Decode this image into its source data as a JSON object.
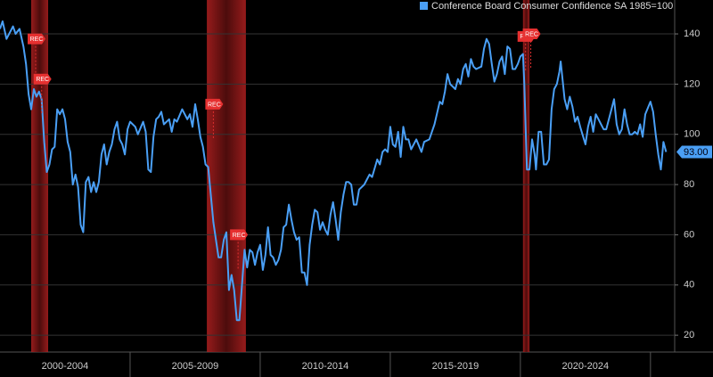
{
  "chart_data": {
    "type": "line",
    "x": [
      2000.0,
      2000.1,
      2000.25,
      2000.4,
      2000.5,
      2000.6,
      2000.75,
      2000.9,
      2001.0,
      2001.1,
      2001.2,
      2001.3,
      2001.4,
      2001.5,
      2001.6,
      2001.7,
      2001.8,
      2001.9,
      2002.0,
      2002.1,
      2002.2,
      2002.3,
      2002.4,
      2002.5,
      2002.6,
      2002.7,
      2002.8,
      2002.9,
      2003.0,
      2003.1,
      2003.2,
      2003.3,
      2003.4,
      2003.5,
      2003.6,
      2003.7,
      2003.8,
      2003.9,
      2004.0,
      2004.1,
      2004.2,
      2004.3,
      2004.4,
      2004.5,
      2004.6,
      2004.7,
      2004.8,
      2004.9,
      2005.0,
      2005.2,
      2005.3,
      2005.5,
      2005.6,
      2005.7,
      2005.8,
      2005.9,
      2006.0,
      2006.1,
      2006.2,
      2006.3,
      2006.5,
      2006.6,
      2006.7,
      2006.8,
      2007.0,
      2007.1,
      2007.2,
      2007.3,
      2007.4,
      2007.5,
      2007.6,
      2007.7,
      2007.8,
      2007.9,
      2008.0,
      2008.1,
      2008.2,
      2008.3,
      2008.4,
      2008.5,
      2008.6,
      2008.7,
      2008.8,
      2008.9,
      2009.0,
      2009.1,
      2009.2,
      2009.3,
      2009.4,
      2009.5,
      2009.6,
      2009.7,
      2009.8,
      2009.9,
      2010.0,
      2010.1,
      2010.2,
      2010.3,
      2010.4,
      2010.5,
      2010.6,
      2010.7,
      2010.8,
      2010.9,
      2011.0,
      2011.1,
      2011.2,
      2011.3,
      2011.4,
      2011.5,
      2011.6,
      2011.7,
      2011.8,
      2011.9,
      2012.0,
      2012.1,
      2012.2,
      2012.3,
      2012.4,
      2012.5,
      2012.6,
      2012.7,
      2012.8,
      2012.9,
      2013.0,
      2013.1,
      2013.2,
      2013.3,
      2013.4,
      2013.5,
      2013.6,
      2013.7,
      2013.8,
      2014.0,
      2014.2,
      2014.3,
      2014.5,
      2014.6,
      2014.7,
      2014.8,
      2014.9,
      2015.0,
      2015.1,
      2015.2,
      2015.3,
      2015.4,
      2015.5,
      2015.6,
      2015.7,
      2015.8,
      2015.9,
      2016.0,
      2016.2,
      2016.3,
      2016.5,
      2016.6,
      2016.7,
      2016.9,
      2017.0,
      2017.1,
      2017.2,
      2017.3,
      2017.5,
      2017.6,
      2017.7,
      2017.8,
      2017.9,
      2018.0,
      2018.1,
      2018.2,
      2018.3,
      2018.5,
      2018.6,
      2018.7,
      2018.8,
      2018.9,
      2019.0,
      2019.1,
      2019.2,
      2019.3,
      2019.4,
      2019.5,
      2019.6,
      2019.7,
      2019.8,
      2019.9,
      2020.0,
      2020.1,
      2020.15,
      2020.25,
      2020.35,
      2020.45,
      2020.55,
      2020.6,
      2020.7,
      2020.8,
      2020.9,
      2021.0,
      2021.1,
      2021.2,
      2021.3,
      2021.4,
      2021.5,
      2021.55,
      2021.7,
      2021.8,
      2021.9,
      2022.0,
      2022.1,
      2022.2,
      2022.3,
      2022.5,
      2022.6,
      2022.7,
      2022.8,
      2022.9,
      2023.0,
      2023.1,
      2023.2,
      2023.3,
      2023.5,
      2023.6,
      2023.7,
      2023.8,
      2023.9,
      2024.0,
      2024.1,
      2024.2,
      2024.3,
      2024.4,
      2024.5,
      2024.6,
      2024.7,
      2024.8,
      2025.0,
      2025.1,
      2025.2,
      2025.3,
      2025.4,
      2025.5,
      2025.6
    ],
    "series": [
      {
        "name": "Conference Board Consumer Confidence SA 1985=100",
        "color": "#4a9ff5",
        "values": [
          142,
          145,
          138,
          141,
          143,
          140,
          142,
          135,
          128,
          116,
          110,
          118,
          115,
          117,
          114,
          97,
          85,
          88,
          94,
          95,
          110,
          108,
          110,
          106,
          97,
          93,
          80,
          84,
          79,
          64,
          61,
          81,
          83,
          77,
          81,
          77,
          81,
          92,
          96,
          88,
          93,
          96,
          102,
          105,
          98,
          96,
          92,
          102,
          105,
          103,
          100,
          105,
          101,
          86,
          85,
          99,
          106,
          107,
          109,
          104,
          106,
          101,
          106,
          105,
          110,
          108,
          106,
          108,
          103,
          112,
          106,
          99,
          95,
          88,
          87,
          76,
          65,
          58,
          51,
          51,
          58,
          61,
          38,
          44,
          38,
          26,
          26,
          40,
          54,
          47,
          54,
          53,
          48,
          53,
          56,
          46,
          52,
          63,
          52,
          51,
          48,
          50,
          54,
          63,
          64,
          72,
          66,
          61,
          58,
          59,
          45,
          45,
          40,
          56,
          64,
          70,
          69,
          62,
          65,
          62,
          60,
          68,
          73,
          66,
          58,
          69,
          76,
          81,
          81,
          80,
          72,
          72,
          78,
          80,
          84,
          83,
          90,
          88,
          93,
          94,
          93,
          103,
          96,
          95,
          101,
          91,
          103,
          98,
          98,
          94,
          96,
          98,
          93,
          97,
          98,
          101,
          104,
          113,
          112,
          117,
          124,
          120,
          118,
          122,
          120,
          126,
          128,
          123,
          130,
          127,
          126,
          127,
          134,
          138,
          136,
          128,
          121,
          124,
          129,
          131,
          124,
          135,
          134,
          126,
          126,
          128,
          131,
          132,
          120,
          86,
          86,
          98,
          92,
          86,
          101,
          101,
          88,
          88,
          90,
          110,
          118,
          120,
          125,
          129,
          114,
          110,
          115,
          111,
          105,
          107,
          103,
          96,
          103,
          107,
          101,
          108,
          106,
          104,
          102,
          102,
          110,
          114,
          104,
          100,
          102,
          110,
          104,
          100,
          100,
          101,
          100,
          104,
          99,
          108,
          113,
          109,
          100,
          92,
          86,
          97,
          93
        ]
      }
    ],
    "last_value": {
      "value": 93,
      "label": "93.00"
    },
    "recessions": [
      {
        "start": 2001.2,
        "end": 2001.85
      },
      {
        "start": 2007.95,
        "end": 2009.45
      },
      {
        "start": 2020.1,
        "end": 2020.35
      }
    ],
    "annotations": [
      {
        "x": 2001.37,
        "y": 138,
        "text": "REC"
      },
      {
        "x": 2001.6,
        "y": 122,
        "text": "REC"
      },
      {
        "x": 2008.2,
        "y": 112,
        "text": "REC"
      },
      {
        "x": 2009.15,
        "y": 60,
        "text": "REC"
      },
      {
        "x": 2020.2,
        "y": 139,
        "text": "REC"
      },
      {
        "x": 2020.4,
        "y": 140,
        "text": "REC"
      }
    ],
    "xlim": [
      2000.0,
      2025.93
    ],
    "xticks": [
      {
        "value": 2002.5,
        "label": "2000-2004"
      },
      {
        "value": 2007.5,
        "label": "2005-2009"
      },
      {
        "value": 2012.5,
        "label": "2010-2014"
      },
      {
        "value": 2017.5,
        "label": "2015-2019"
      },
      {
        "value": 2022.5,
        "label": "2020-2024"
      }
    ],
    "ylim": [
      13.3,
      153.5
    ],
    "yticks": [
      20,
      40,
      60,
      80,
      100,
      120,
      140
    ],
    "grid": true
  }
}
